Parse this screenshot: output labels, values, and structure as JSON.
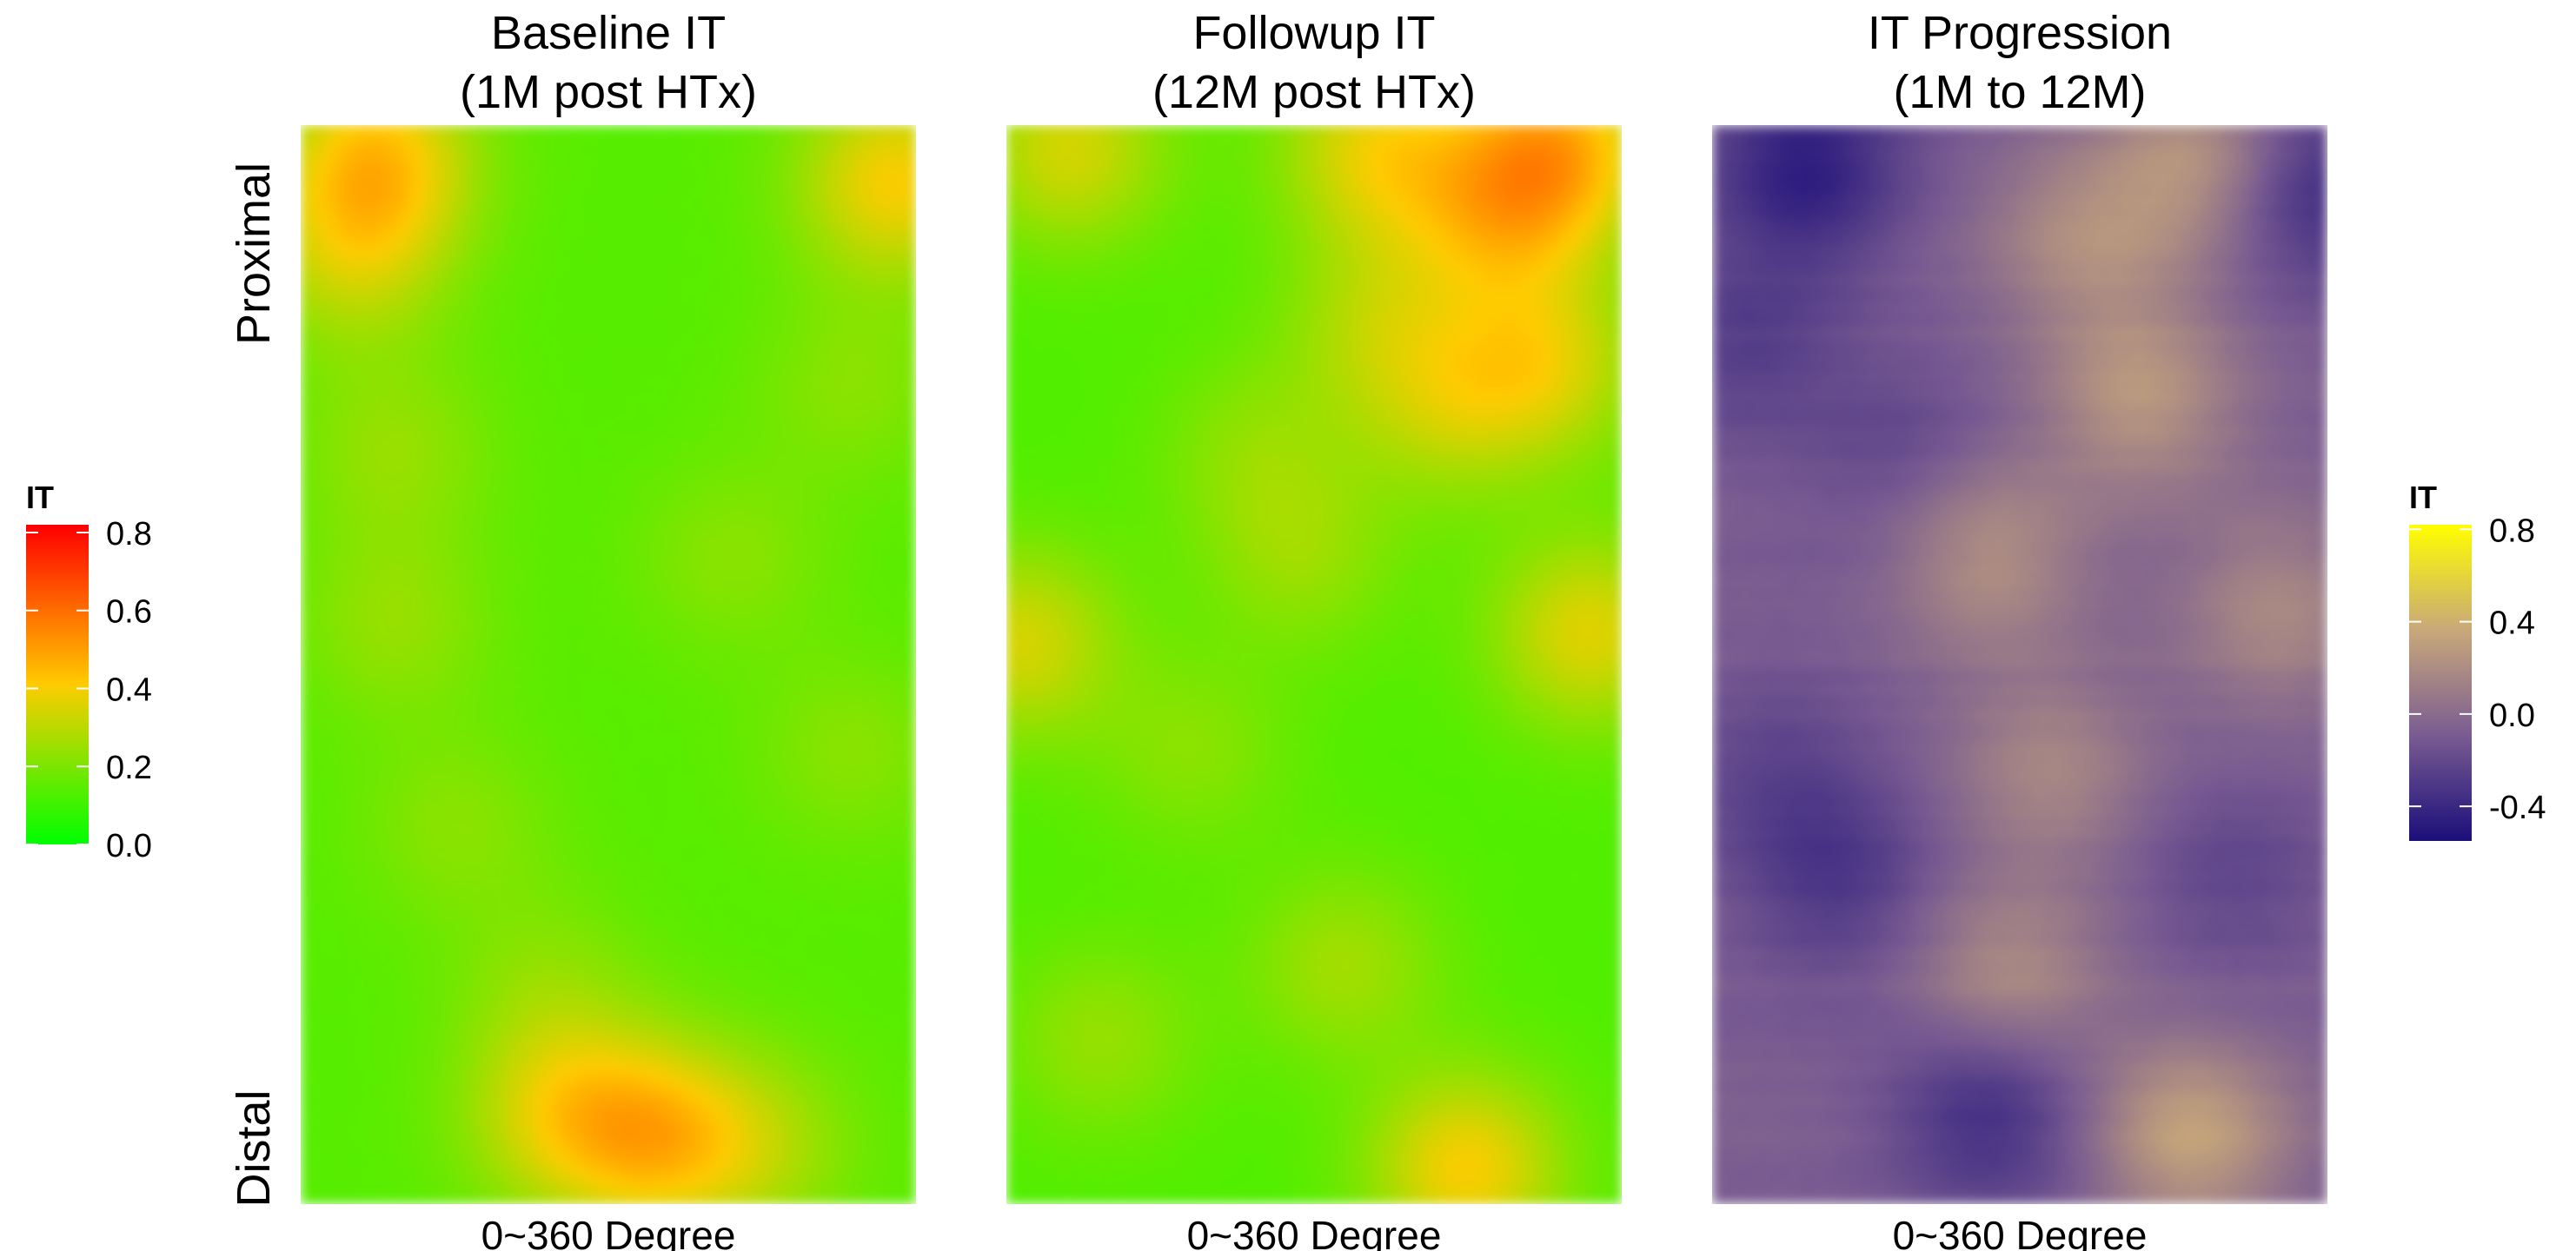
{
  "chart_data": [
    {
      "type": "heatmap",
      "title_lines": [
        "Baseline IT",
        "(1M post HTx)"
      ],
      "xlabel": "0~360 Degree",
      "ylabel_top": "Proximal",
      "ylabel_bottom": "Distal",
      "legend_title": "IT",
      "legend_ticks": [
        "0.8",
        "0.6",
        "0.4",
        "0.2",
        "0.0"
      ],
      "legend_tick_values": [
        0.8,
        0.6,
        0.4,
        0.2,
        0.0
      ],
      "scale_range": [
        0.0,
        0.82
      ],
      "colors": [
        "#00ff00",
        "#ffcc00",
        "#ff0000"
      ],
      "base_value": 0.14,
      "hotspots": [
        {
          "x": 0.12,
          "y": 0.03,
          "value": 0.42
        },
        {
          "x": 0.97,
          "y": 0.05,
          "value": 0.4
        },
        {
          "x": 0.08,
          "y": 0.12,
          "value": 0.3
        },
        {
          "x": 0.15,
          "y": 0.3,
          "value": 0.24
        },
        {
          "x": 0.9,
          "y": 0.24,
          "value": 0.22
        },
        {
          "x": 0.15,
          "y": 0.46,
          "value": 0.24
        },
        {
          "x": 0.7,
          "y": 0.4,
          "value": 0.22
        },
        {
          "x": 0.9,
          "y": 0.58,
          "value": 0.22
        },
        {
          "x": 0.25,
          "y": 0.65,
          "value": 0.22
        },
        {
          "x": 0.4,
          "y": 0.8,
          "value": 0.22
        },
        {
          "x": 0.58,
          "y": 0.94,
          "value": 0.4
        },
        {
          "x": 0.42,
          "y": 0.92,
          "value": 0.34
        },
        {
          "x": 0.75,
          "y": 0.95,
          "value": 0.26
        }
      ]
    },
    {
      "type": "heatmap",
      "title_lines": [
        "Followup IT",
        "(12M post HTx)"
      ],
      "xlabel": "0~360 Degree",
      "base_value": 0.13,
      "hotspots": [
        {
          "x": 0.9,
          "y": 0.02,
          "value": 0.44
        },
        {
          "x": 0.6,
          "y": 0.02,
          "value": 0.36
        },
        {
          "x": 0.1,
          "y": 0.02,
          "value": 0.34
        },
        {
          "x": 0.8,
          "y": 0.08,
          "value": 0.34
        },
        {
          "x": 0.88,
          "y": 0.22,
          "value": 0.34
        },
        {
          "x": 0.72,
          "y": 0.26,
          "value": 0.28
        },
        {
          "x": 0.6,
          "y": 0.18,
          "value": 0.26
        },
        {
          "x": 0.4,
          "y": 0.3,
          "value": 0.22
        },
        {
          "x": 0.95,
          "y": 0.47,
          "value": 0.36
        },
        {
          "x": 0.02,
          "y": 0.48,
          "value": 0.34
        },
        {
          "x": 0.48,
          "y": 0.4,
          "value": 0.24
        },
        {
          "x": 0.3,
          "y": 0.58,
          "value": 0.22
        },
        {
          "x": 0.55,
          "y": 0.78,
          "value": 0.26
        },
        {
          "x": 0.75,
          "y": 0.97,
          "value": 0.4
        },
        {
          "x": 0.15,
          "y": 0.85,
          "value": 0.24
        }
      ]
    },
    {
      "type": "heatmap",
      "title_lines": [
        "IT Progression",
        "(1M to 12M)"
      ],
      "xlabel": "0~360 Degree",
      "legend_title": "IT",
      "legend_ticks": [
        "0.8",
        "0.4",
        "0.0",
        "-0.4"
      ],
      "legend_tick_values": [
        0.8,
        0.4,
        0.0,
        -0.4
      ],
      "scale_range": [
        -0.55,
        0.82
      ],
      "colors": [
        "#1c0f7a",
        "#7a5c92",
        "#c9a87a",
        "#ffff00"
      ],
      "base_value": -0.08,
      "hotspots": [
        {
          "x": 0.15,
          "y": 0.04,
          "value": -0.45
        },
        {
          "x": 0.97,
          "y": 0.06,
          "value": -0.4
        },
        {
          "x": 0.8,
          "y": 0.03,
          "value": 0.28
        },
        {
          "x": 0.6,
          "y": 0.1,
          "value": 0.18
        },
        {
          "x": 0.7,
          "y": 0.25,
          "value": 0.26
        },
        {
          "x": 0.45,
          "y": 0.4,
          "value": 0.22
        },
        {
          "x": 0.92,
          "y": 0.45,
          "value": 0.18
        },
        {
          "x": 0.55,
          "y": 0.6,
          "value": 0.16
        },
        {
          "x": 0.48,
          "y": 0.8,
          "value": 0.22
        },
        {
          "x": 0.78,
          "y": 0.94,
          "value": 0.32
        },
        {
          "x": 0.45,
          "y": 0.91,
          "value": -0.4
        },
        {
          "x": 0.05,
          "y": 0.2,
          "value": -0.26
        },
        {
          "x": 0.1,
          "y": 0.6,
          "value": -0.22
        },
        {
          "x": 0.2,
          "y": 0.7,
          "value": -0.3
        },
        {
          "x": 0.85,
          "y": 0.7,
          "value": -0.22
        },
        {
          "x": 0.3,
          "y": 0.3,
          "value": -0.2
        }
      ]
    }
  ]
}
